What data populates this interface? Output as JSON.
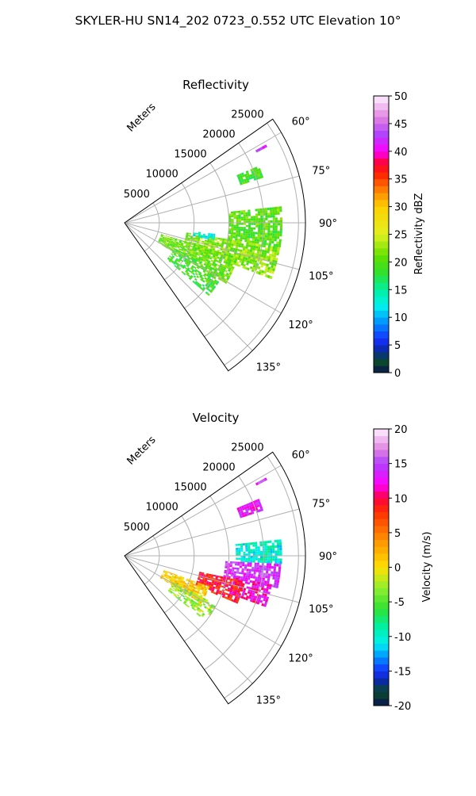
{
  "figure": {
    "suptitle": "SKYLER-HU  SN14_202  0723_0.552 UTC Elevation 10°"
  },
  "chart_data": [
    {
      "type": "polar-sector",
      "title": "Reflectivity",
      "radial_label": "Meters",
      "r_ticks": [
        5000,
        10000,
        15000,
        20000,
        25000
      ],
      "r_max": 26000,
      "theta_ticks_deg": [
        60,
        75,
        90,
        105,
        120,
        135
      ],
      "theta_range_deg": [
        55,
        145
      ],
      "colorbar": {
        "label": "Reflectivity dBZ",
        "min": 0,
        "max": 50,
        "ticks": [
          0,
          5,
          10,
          15,
          20,
          25,
          30,
          35,
          40,
          45,
          50
        ],
        "stops": [
          {
            "v": 0,
            "c": "#0a1450"
          },
          {
            "v": 2,
            "c": "#0a4a2a"
          },
          {
            "v": 4,
            "c": "#0a2aa0"
          },
          {
            "v": 6,
            "c": "#1530ff"
          },
          {
            "v": 9,
            "c": "#0090ff"
          },
          {
            "v": 12,
            "c": "#00f0f0"
          },
          {
            "v": 15,
            "c": "#00f0a0"
          },
          {
            "v": 18,
            "c": "#30e030"
          },
          {
            "v": 21,
            "c": "#60e000"
          },
          {
            "v": 25,
            "c": "#e0f020"
          },
          {
            "v": 30,
            "c": "#ffd000"
          },
          {
            "v": 33,
            "c": "#ff8000"
          },
          {
            "v": 36,
            "c": "#ff2000"
          },
          {
            "v": 38,
            "c": "#ff0040"
          },
          {
            "v": 40,
            "c": "#ff00ff"
          },
          {
            "v": 43,
            "c": "#b040ff"
          },
          {
            "v": 46,
            "c": "#e080e0"
          },
          {
            "v": 50,
            "c": "#fff0ff"
          }
        ]
      },
      "echo_regions": [
        {
          "r": [
            17500,
            21000
          ],
          "theta": [
            67,
            72
          ],
          "value": 19,
          "density": 0.85
        },
        {
          "r": [
            21500,
            23000
          ],
          "theta": [
            61,
            62
          ],
          "value": 42,
          "density": 0.6
        },
        {
          "r": [
            15000,
            22500
          ],
          "theta": [
            84,
            99
          ],
          "value": 20,
          "density": 0.85
        },
        {
          "r": [
            9000,
            22500
          ],
          "theta": [
            99,
            111
          ],
          "value": 22,
          "density": 0.75
        },
        {
          "r": [
            5500,
            17000
          ],
          "theta": [
            107,
            121
          ],
          "value": 21,
          "density": 0.8
        },
        {
          "r": [
            8000,
            16000
          ],
          "theta": [
            117,
            131
          ],
          "value": 19,
          "density": 0.55
        },
        {
          "r": [
            10000,
            13000
          ],
          "theta": [
            97,
            101
          ],
          "value": 13,
          "density": 0.6
        }
      ]
    },
    {
      "type": "polar-sector",
      "title": "Velocity",
      "radial_label": "Meters",
      "r_ticks": [
        5000,
        10000,
        15000,
        20000,
        25000
      ],
      "r_max": 26000,
      "theta_ticks_deg": [
        60,
        75,
        90,
        105,
        120,
        135
      ],
      "theta_range_deg": [
        55,
        145
      ],
      "colorbar": {
        "label": "Velocity (m/s)",
        "min": -20,
        "max": 20,
        "ticks": [
          -20,
          -15,
          -10,
          -5,
          0,
          5,
          10,
          15,
          20
        ],
        "stops": [
          {
            "v": -20,
            "c": "#0a1450"
          },
          {
            "v": -18,
            "c": "#0a4a2a"
          },
          {
            "v": -16.5,
            "c": "#0a2aa0"
          },
          {
            "v": -15,
            "c": "#1530ff"
          },
          {
            "v": -13,
            "c": "#0090ff"
          },
          {
            "v": -11,
            "c": "#00f0f0"
          },
          {
            "v": -8.5,
            "c": "#00f0a0"
          },
          {
            "v": -6,
            "c": "#30e030"
          },
          {
            "v": -3,
            "c": "#90f030"
          },
          {
            "v": 0,
            "c": "#ffe000"
          },
          {
            "v": 4,
            "c": "#ff9000"
          },
          {
            "v": 8,
            "c": "#ff3000"
          },
          {
            "v": 10,
            "c": "#ff0040"
          },
          {
            "v": 12,
            "c": "#ff00ff"
          },
          {
            "v": 15,
            "c": "#b040ff"
          },
          {
            "v": 17,
            "c": "#e080e0"
          },
          {
            "v": 20,
            "c": "#fff0ff"
          }
        ]
      },
      "echo_regions": [
        {
          "r": [
            17500,
            21000
          ],
          "theta": [
            67,
            72
          ],
          "value": 13,
          "density": 0.85
        },
        {
          "r": [
            21500,
            23000
          ],
          "theta": [
            61,
            62
          ],
          "value": 14,
          "density": 0.6
        },
        {
          "r": [
            16000,
            22500
          ],
          "theta": [
            84,
            93
          ],
          "value": -10,
          "density": 0.8
        },
        {
          "r": [
            14500,
            22500
          ],
          "theta": [
            93,
            102
          ],
          "value": 14,
          "density": 0.8
        },
        {
          "r": [
            16000,
            21500
          ],
          "theta": [
            101,
            110
          ],
          "value": 12,
          "density": 0.7
        },
        {
          "r": [
            11000,
            17500
          ],
          "theta": [
            102,
            113
          ],
          "value": 9,
          "density": 0.8
        },
        {
          "r": [
            6000,
            13000
          ],
          "theta": [
            110,
            122
          ],
          "value": 1,
          "density": 0.85
        },
        {
          "r": [
            8000,
            15000
          ],
          "theta": [
            118,
            129
          ],
          "value": -3,
          "density": 0.55
        }
      ]
    }
  ]
}
